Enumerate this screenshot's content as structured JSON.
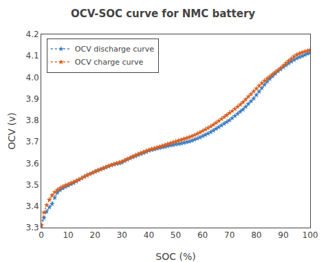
{
  "chart_data": {
    "type": "line",
    "title": "OCV-SOC curve for NMC battery",
    "xlabel": "SOC (%)",
    "ylabel": "OCV (v)",
    "xlim": [
      0,
      100
    ],
    "ylim": [
      3.3,
      4.2
    ],
    "xticks": [
      0,
      10,
      20,
      30,
      40,
      50,
      60,
      70,
      80,
      90,
      100
    ],
    "yticks": [
      3.3,
      3.4,
      3.5,
      3.6,
      3.7,
      3.8,
      3.9,
      {
        "value": 4.0,
        "label": "4.0"
      },
      4.1,
      4.2
    ],
    "grid": false,
    "legend": "upper left",
    "x": [
      0,
      1,
      2,
      3,
      4,
      5,
      6,
      7,
      8,
      9,
      10,
      11,
      12,
      13,
      14,
      15,
      16,
      17,
      18,
      19,
      20,
      21,
      22,
      23,
      24,
      25,
      26,
      27,
      28,
      29,
      30,
      31,
      32,
      33,
      34,
      35,
      36,
      37,
      38,
      39,
      40,
      41,
      42,
      43,
      44,
      45,
      46,
      47,
      48,
      49,
      50,
      51,
      52,
      53,
      54,
      55,
      56,
      57,
      58,
      59,
      60,
      61,
      62,
      63,
      64,
      65,
      66,
      67,
      68,
      69,
      70,
      71,
      72,
      73,
      74,
      75,
      76,
      77,
      78,
      79,
      80,
      81,
      82,
      83,
      84,
      85,
      86,
      87,
      88,
      89,
      90,
      91,
      92,
      93,
      94,
      95,
      96,
      97,
      98,
      99,
      100
    ],
    "series": [
      {
        "name": "OCV discharge curve",
        "color": "#3d7ebf",
        "marker": "star",
        "line_style": "dotted",
        "values": [
          3.31,
          3.345,
          3.375,
          3.395,
          3.41,
          3.44,
          3.463,
          3.475,
          3.483,
          3.49,
          3.496,
          3.502,
          3.508,
          3.515,
          3.522,
          3.53,
          3.537,
          3.543,
          3.55,
          3.555,
          3.56,
          3.565,
          3.57,
          3.575,
          3.58,
          3.585,
          3.59,
          3.594,
          3.597,
          3.6,
          3.603,
          3.61,
          3.617,
          3.622,
          3.628,
          3.633,
          3.638,
          3.643,
          3.648,
          3.653,
          3.658,
          3.662,
          3.665,
          3.668,
          3.671,
          3.674,
          3.677,
          3.68,
          3.683,
          3.685,
          3.688,
          3.69,
          3.692,
          3.695,
          3.698,
          3.701,
          3.705,
          3.71,
          3.715,
          3.72,
          3.726,
          3.732,
          3.738,
          3.745,
          3.752,
          3.76,
          3.768,
          3.776,
          3.784,
          3.792,
          3.8,
          3.81,
          3.82,
          3.83,
          3.84,
          3.85,
          3.863,
          3.876,
          3.889,
          3.902,
          3.918,
          3.934,
          3.95,
          3.966,
          3.98,
          3.993,
          4.005,
          4.017,
          4.028,
          4.038,
          4.047,
          4.056,
          4.065,
          4.073,
          4.081,
          4.088,
          4.094,
          4.099,
          4.104,
          4.11,
          4.115
        ]
      },
      {
        "name": "OCV charge curve",
        "color": "#d95f20",
        "marker": "star",
        "line_style": "dotted",
        "values": [
          3.31,
          3.37,
          3.405,
          3.43,
          3.45,
          3.465,
          3.476,
          3.484,
          3.491,
          3.497,
          3.502,
          3.507,
          3.512,
          3.518,
          3.524,
          3.53,
          3.537,
          3.543,
          3.549,
          3.555,
          3.561,
          3.567,
          3.572,
          3.577,
          3.582,
          3.587,
          3.592,
          3.596,
          3.6,
          3.604,
          3.608,
          3.613,
          3.619,
          3.625,
          3.631,
          3.637,
          3.642,
          3.647,
          3.652,
          3.657,
          3.662,
          3.666,
          3.669,
          3.673,
          3.677,
          3.681,
          3.685,
          3.689,
          3.693,
          3.697,
          3.701,
          3.705,
          3.709,
          3.713,
          3.717,
          3.721,
          3.726,
          3.731,
          3.737,
          3.743,
          3.75,
          3.757,
          3.764,
          3.771,
          3.779,
          3.788,
          3.797,
          3.806,
          3.815,
          3.824,
          3.834,
          3.843,
          3.853,
          3.863,
          3.873,
          3.884,
          3.897,
          3.91,
          3.922,
          3.935,
          3.948,
          3.961,
          3.973,
          3.984,
          3.994,
          4.004,
          4.014,
          4.024,
          4.033,
          4.043,
          4.055,
          4.066,
          4.077,
          4.087,
          4.097,
          4.105,
          4.111,
          4.116,
          4.12,
          4.124,
          4.128
        ]
      }
    ]
  }
}
